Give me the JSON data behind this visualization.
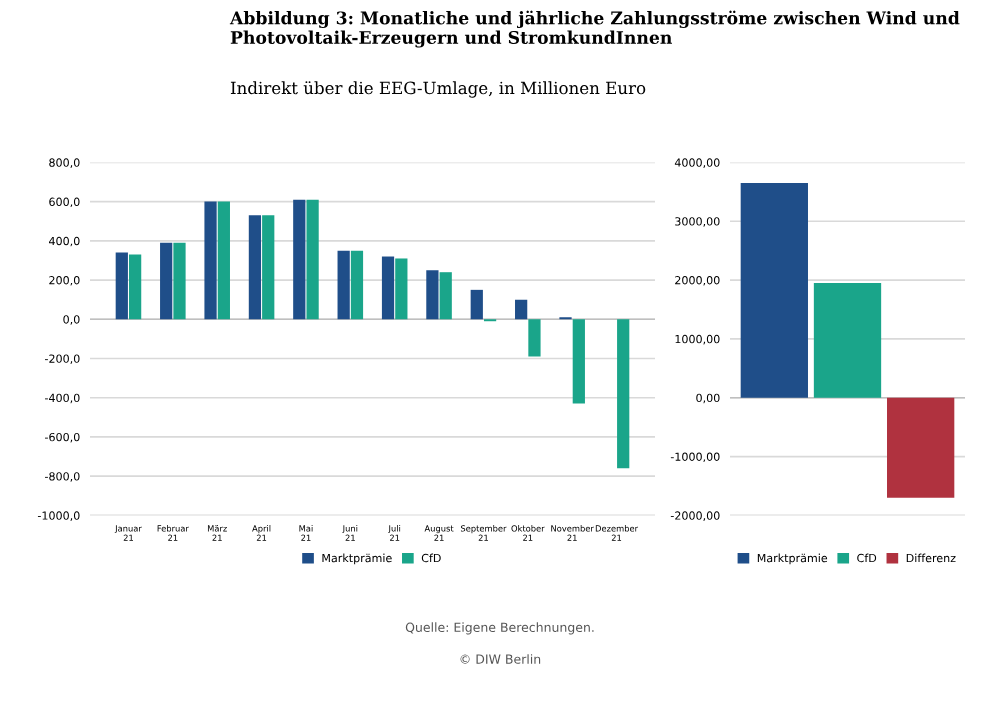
{
  "chart_data": [
    {
      "type": "bar",
      "title": "Abbildung 3: Monatliche und jährliche Zahlungsströme zwischen Wind und Photovoltaik-Erzeugern und StromkundInnen",
      "subtitle": "Indirekt über die EEG-Umlage, in Millionen Euro",
      "categories": [
        "Januar 21",
        "Februar 21",
        "März 21",
        "April 21",
        "Mai 21",
        "Juni 21",
        "Juli 21",
        "August 21",
        "September 21",
        "Oktober 21",
        "November 21",
        "Dezember 21"
      ],
      "series": [
        {
          "name": "Marktprämie",
          "color": "#1f4e89",
          "values": [
            340,
            390,
            600,
            530,
            610,
            350,
            320,
            250,
            150,
            100,
            10,
            0
          ]
        },
        {
          "name": "CfD",
          "color": "#1aa58a",
          "values": [
            330,
            390,
            600,
            530,
            610,
            350,
            310,
            240,
            -10,
            -190,
            -430,
            -760
          ]
        }
      ],
      "ylim": [
        -1000,
        800
      ],
      "yticks": [
        {
          "value": 800,
          "label": "800,0"
        },
        {
          "value": 600,
          "label": "600,0"
        },
        {
          "value": 400,
          "label": "400,0"
        },
        {
          "value": 200,
          "label": "200,0"
        },
        {
          "value": 0,
          "label": "0,0"
        },
        {
          "value": -200,
          "label": "-200,0"
        },
        {
          "value": -400,
          "label": "-400,0"
        },
        {
          "value": -600,
          "label": "-600,0"
        },
        {
          "value": -800,
          "label": "-800,0"
        },
        {
          "value": -1000,
          "label": "-1000,0"
        }
      ],
      "grid": "y",
      "legend": "bottom",
      "annotations": [
        "Quelle: Eigene Berechnungen.",
        "© DIW Berlin"
      ]
    },
    {
      "type": "bar",
      "categories": [
        null
      ],
      "series": [
        {
          "name": "Marktprämie",
          "color": "#1f4e89",
          "values": [
            3650
          ]
        },
        {
          "name": "CfD",
          "color": "#1aa58a",
          "values": [
            1950
          ]
        },
        {
          "name": "Differenz",
          "color": "#b0323f",
          "values": [
            -1700
          ]
        }
      ],
      "ylim": [
        -2000,
        4000
      ],
      "yticks": [
        {
          "value": 4000,
          "label": "4000,00"
        },
        {
          "value": 3000,
          "label": "3000,00"
        },
        {
          "value": 2000,
          "label": "2000,00"
        },
        {
          "value": 1000,
          "label": "1000,00"
        },
        {
          "value": 0,
          "label": "0,00"
        },
        {
          "value": -1000,
          "label": "-1000,00"
        },
        {
          "value": -2000,
          "label": "-2000,00"
        }
      ],
      "grid": "y",
      "legend": "bottom"
    }
  ]
}
